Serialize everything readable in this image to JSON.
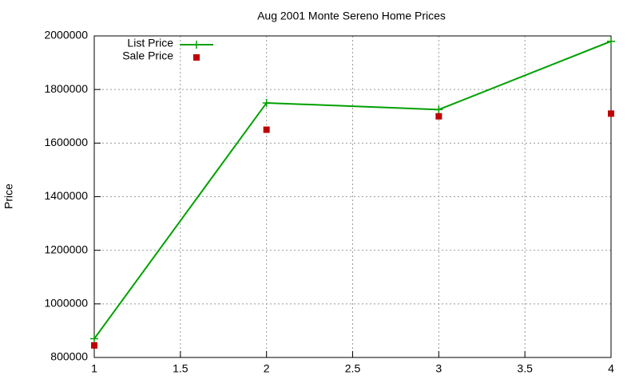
{
  "chart_data": {
    "type": "line",
    "title": "Aug 2001 Monte Sereno Home Prices",
    "y_label": "Price",
    "x": [
      1,
      2,
      3,
      4
    ],
    "series": [
      {
        "name": "List Price",
        "color": "#00a000",
        "mode": "lines+markers",
        "values": [
          870000,
          1750000,
          1725000,
          1980000
        ]
      },
      {
        "name": "Sale Price",
        "color": "#c00000",
        "mode": "markers",
        "values": [
          845000,
          1650000,
          1700000,
          1710000
        ]
      }
    ],
    "xlim": [
      1,
      4
    ],
    "xticks": [
      1,
      1.5,
      2,
      2.5,
      3,
      3.5,
      4
    ],
    "ylim": [
      800000,
      2000000
    ],
    "yticks": [
      800000,
      1000000,
      1200000,
      1400000,
      1600000,
      1800000,
      2000000
    ],
    "grid": true,
    "legend": "top-left"
  }
}
